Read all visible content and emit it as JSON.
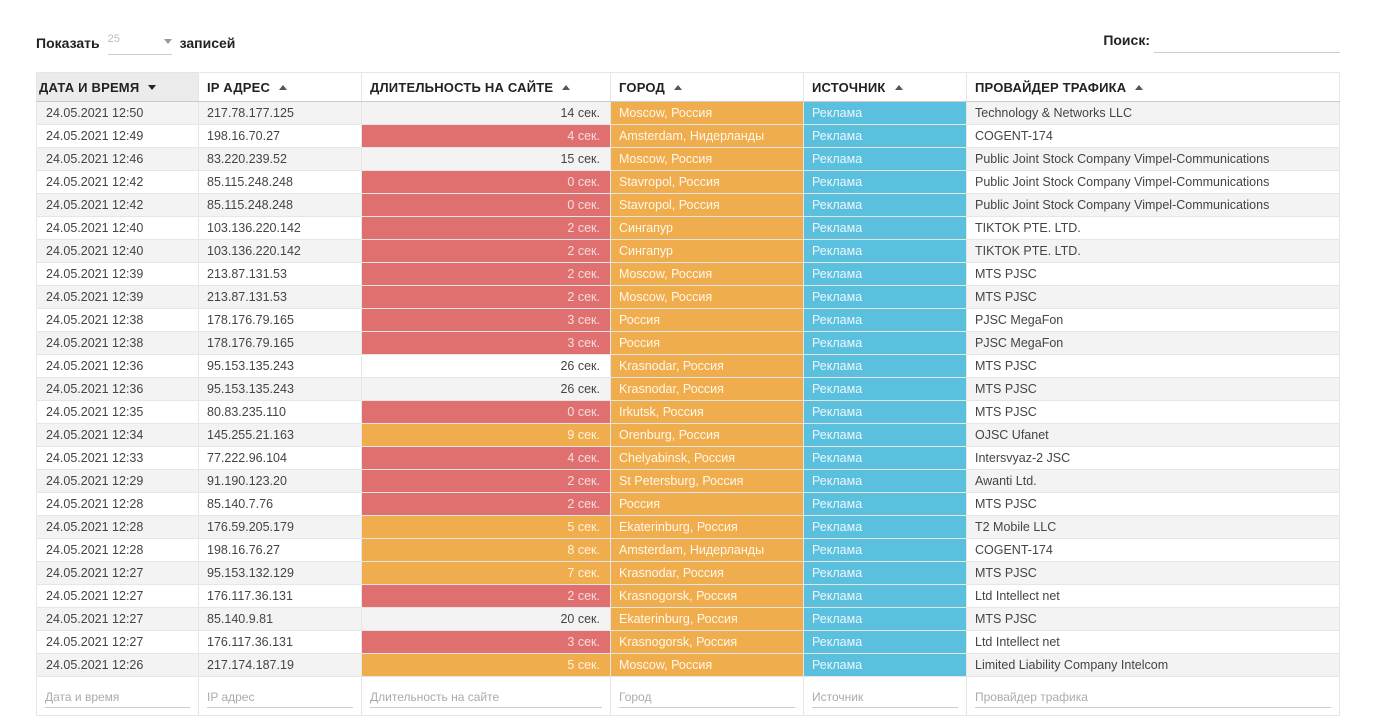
{
  "controls": {
    "show_label": "Показать",
    "show_value": "25",
    "show_suffix": "записей",
    "search_label": "Поиск:",
    "search_value": ""
  },
  "columns": [
    {
      "label": "ДАТА И ВРЕМЯ",
      "sort": "desc",
      "filter_placeholder": "Дата и время"
    },
    {
      "label": "IP АДРЕС",
      "sort": "asc",
      "filter_placeholder": "IP адрес"
    },
    {
      "label": "ДЛИТЕЛЬНОСТЬ НА САЙТЕ",
      "sort": "asc",
      "filter_placeholder": "Длительность на сайте"
    },
    {
      "label": "ГОРОД",
      "sort": "asc",
      "filter_placeholder": "Город"
    },
    {
      "label": "ИСТОЧНИК",
      "sort": "asc",
      "filter_placeholder": "Источник"
    },
    {
      "label": "ПРОВАЙДЕР ТРАФИКА",
      "sort": "asc",
      "filter_placeholder": "Провайдер трафика"
    }
  ],
  "colors": {
    "short_visit": "#e07070",
    "medium_visit": "#f0ad4e",
    "city": "#f0ad4e",
    "source": "#5bc0de"
  },
  "rows": [
    {
      "date": "24.05.2021 12:50",
      "ip": "217.78.177.125",
      "duration": "14 сек.",
      "level": "none",
      "city": "Moscow, Россия",
      "source": "Реклама",
      "provider": "Technology & Networks LLC"
    },
    {
      "date": "24.05.2021 12:49",
      "ip": "198.16.70.27",
      "duration": "4 сек.",
      "level": "red",
      "city": "Amsterdam, Нидерланды",
      "source": "Реклама",
      "provider": "COGENT-174"
    },
    {
      "date": "24.05.2021 12:46",
      "ip": "83.220.239.52",
      "duration": "15 сек.",
      "level": "none",
      "city": "Moscow, Россия",
      "source": "Реклама",
      "provider": "Public Joint Stock Company Vimpel-Communications"
    },
    {
      "date": "24.05.2021 12:42",
      "ip": "85.115.248.248",
      "duration": "0 сек.",
      "level": "red",
      "city": "Stavropol, Россия",
      "source": "Реклама",
      "provider": "Public Joint Stock Company Vimpel-Communications"
    },
    {
      "date": "24.05.2021 12:42",
      "ip": "85.115.248.248",
      "duration": "0 сек.",
      "level": "red",
      "city": "Stavropol, Россия",
      "source": "Реклама",
      "provider": "Public Joint Stock Company Vimpel-Communications"
    },
    {
      "date": "24.05.2021 12:40",
      "ip": "103.136.220.142",
      "duration": "2 сек.",
      "level": "red",
      "city": "Сингапур",
      "source": "Реклама",
      "provider": "TIKTOK PTE. LTD."
    },
    {
      "date": "24.05.2021 12:40",
      "ip": "103.136.220.142",
      "duration": "2 сек.",
      "level": "red",
      "city": "Сингапур",
      "source": "Реклама",
      "provider": "TIKTOK PTE. LTD."
    },
    {
      "date": "24.05.2021 12:39",
      "ip": "213.87.131.53",
      "duration": "2 сек.",
      "level": "red",
      "city": "Moscow, Россия",
      "source": "Реклама",
      "provider": "MTS PJSC"
    },
    {
      "date": "24.05.2021 12:39",
      "ip": "213.87.131.53",
      "duration": "2 сек.",
      "level": "red",
      "city": "Moscow, Россия",
      "source": "Реклама",
      "provider": "MTS PJSC"
    },
    {
      "date": "24.05.2021 12:38",
      "ip": "178.176.79.165",
      "duration": "3 сек.",
      "level": "red",
      "city": "Россия",
      "source": "Реклама",
      "provider": "PJSC MegaFon"
    },
    {
      "date": "24.05.2021 12:38",
      "ip": "178.176.79.165",
      "duration": "3 сек.",
      "level": "red",
      "city": "Россия",
      "source": "Реклама",
      "provider": "PJSC MegaFon"
    },
    {
      "date": "24.05.2021 12:36",
      "ip": "95.153.135.243",
      "duration": "26 сек.",
      "level": "none",
      "city": "Krasnodar, Россия",
      "source": "Реклама",
      "provider": "MTS PJSC"
    },
    {
      "date": "24.05.2021 12:36",
      "ip": "95.153.135.243",
      "duration": "26 сек.",
      "level": "none",
      "city": "Krasnodar, Россия",
      "source": "Реклама",
      "provider": "MTS PJSC"
    },
    {
      "date": "24.05.2021 12:35",
      "ip": "80.83.235.110",
      "duration": "0 сек.",
      "level": "red",
      "city": "Irkutsk, Россия",
      "source": "Реклама",
      "provider": "MTS PJSC"
    },
    {
      "date": "24.05.2021 12:34",
      "ip": "145.255.21.163",
      "duration": "9 сек.",
      "level": "orange",
      "city": "Orenburg, Россия",
      "source": "Реклама",
      "provider": "OJSC Ufanet"
    },
    {
      "date": "24.05.2021 12:33",
      "ip": "77.222.96.104",
      "duration": "4 сек.",
      "level": "red",
      "city": "Chelyabinsk, Россия",
      "source": "Реклама",
      "provider": "Intersvyaz-2 JSC"
    },
    {
      "date": "24.05.2021 12:29",
      "ip": "91.190.123.20",
      "duration": "2 сек.",
      "level": "red",
      "city": "St Petersburg, Россия",
      "source": "Реклама",
      "provider": "Awanti Ltd."
    },
    {
      "date": "24.05.2021 12:28",
      "ip": "85.140.7.76",
      "duration": "2 сек.",
      "level": "red",
      "city": "Россия",
      "source": "Реклама",
      "provider": "MTS PJSC"
    },
    {
      "date": "24.05.2021 12:28",
      "ip": "176.59.205.179",
      "duration": "5 сек.",
      "level": "orange",
      "city": "Ekaterinburg, Россия",
      "source": "Реклама",
      "provider": "T2 Mobile LLC"
    },
    {
      "date": "24.05.2021 12:28",
      "ip": "198.16.76.27",
      "duration": "8 сек.",
      "level": "orange",
      "city": "Amsterdam, Нидерланды",
      "source": "Реклама",
      "provider": "COGENT-174"
    },
    {
      "date": "24.05.2021 12:27",
      "ip": "95.153.132.129",
      "duration": "7 сек.",
      "level": "orange",
      "city": "Krasnodar, Россия",
      "source": "Реклама",
      "provider": "MTS PJSC"
    },
    {
      "date": "24.05.2021 12:27",
      "ip": "176.117.36.131",
      "duration": "2 сек.",
      "level": "red",
      "city": "Krasnogorsk, Россия",
      "source": "Реклама",
      "provider": "Ltd Intellect net"
    },
    {
      "date": "24.05.2021 12:27",
      "ip": "85.140.9.81",
      "duration": "20 сек.",
      "level": "none",
      "city": "Ekaterinburg, Россия",
      "source": "Реклама",
      "provider": "MTS PJSC"
    },
    {
      "date": "24.05.2021 12:27",
      "ip": "176.117.36.131",
      "duration": "3 сек.",
      "level": "red",
      "city": "Krasnogorsk, Россия",
      "source": "Реклама",
      "provider": "Ltd Intellect net"
    },
    {
      "date": "24.05.2021 12:26",
      "ip": "217.174.187.19",
      "duration": "5 сек.",
      "level": "orange",
      "city": "Moscow, Россия",
      "source": "Реклама",
      "provider": "Limited Liability Company Intelcom"
    }
  ]
}
